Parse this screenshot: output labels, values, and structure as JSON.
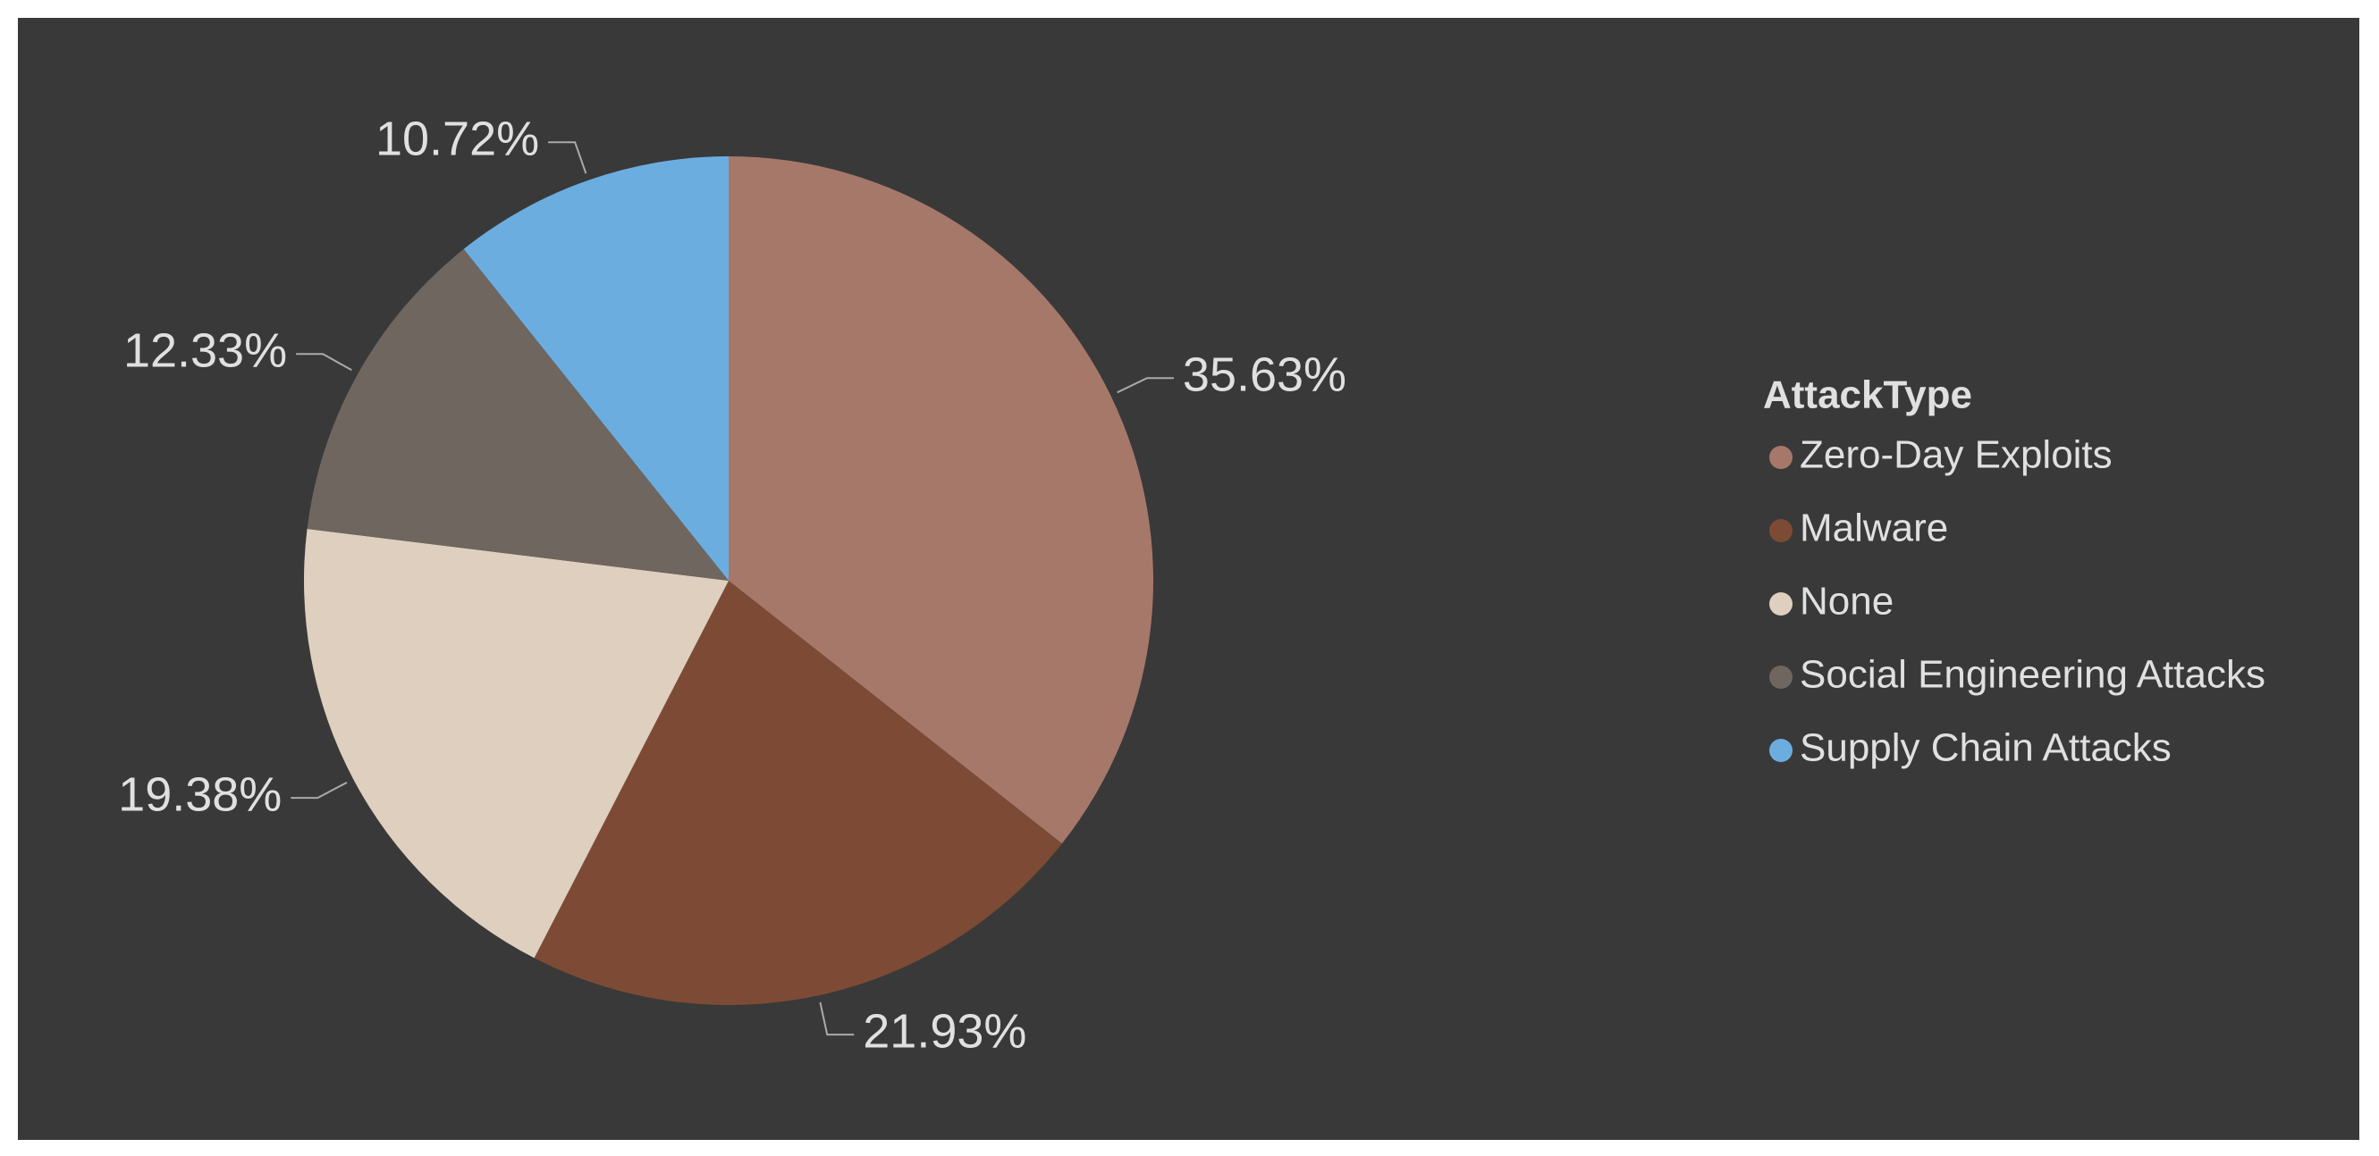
{
  "chart_data": {
    "type": "pie",
    "categories": [
      "Zero-Day Exploits",
      "Malware",
      "None",
      "Social Engineering Attacks",
      "Supply Chain Attacks"
    ],
    "values": [
      35.63,
      21.93,
      19.38,
      12.33,
      10.72
    ],
    "value_labels": [
      "35.63%",
      "21.93%",
      "19.38%",
      "12.33%",
      "10.72%"
    ],
    "colors": [
      "#a6786a",
      "#7d4b35",
      "#dfcfbe",
      "#6f6660",
      "#6cade0"
    ],
    "legend_title": "AttackType",
    "legend": "right"
  }
}
